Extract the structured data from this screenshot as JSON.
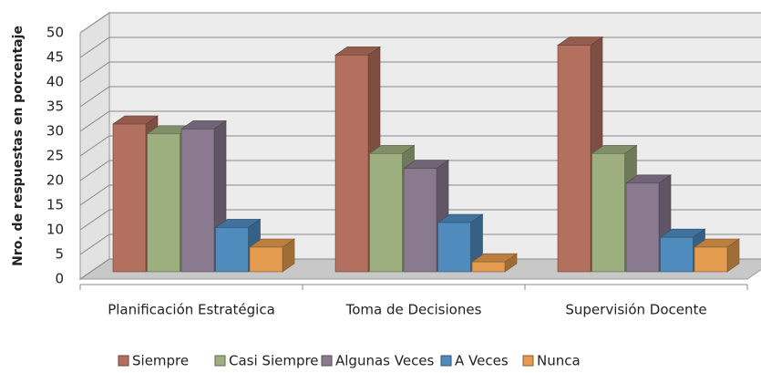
{
  "chart_data": {
    "type": "bar3d",
    "y_label": "Nro. de respuestas en porcentaje",
    "categories": [
      "Planificación Estratégica",
      "Toma de Decisiones",
      "Supervisión Docente"
    ],
    "series": [
      {
        "name": "Siempre",
        "color": "#b3705e",
        "values": [
          30,
          44,
          46
        ]
      },
      {
        "name": "Casi Siempre",
        "color": "#9dae7f",
        "values": [
          28,
          24,
          24
        ]
      },
      {
        "name": "Algunas Veces",
        "color": "#8a7a90",
        "values": [
          29,
          21,
          18
        ]
      },
      {
        "name": "A Veces",
        "color": "#4f8bbd",
        "values": [
          9,
          10,
          7
        ]
      },
      {
        "name": "Nunca",
        "color": "#e39b4f",
        "values": [
          5,
          2,
          5
        ]
      }
    ],
    "ylim": [
      0,
      50
    ],
    "yticks": [
      0,
      5,
      10,
      15,
      20,
      25,
      30,
      35,
      40,
      45,
      50
    ],
    "grid": true,
    "legend": "bottom"
  }
}
